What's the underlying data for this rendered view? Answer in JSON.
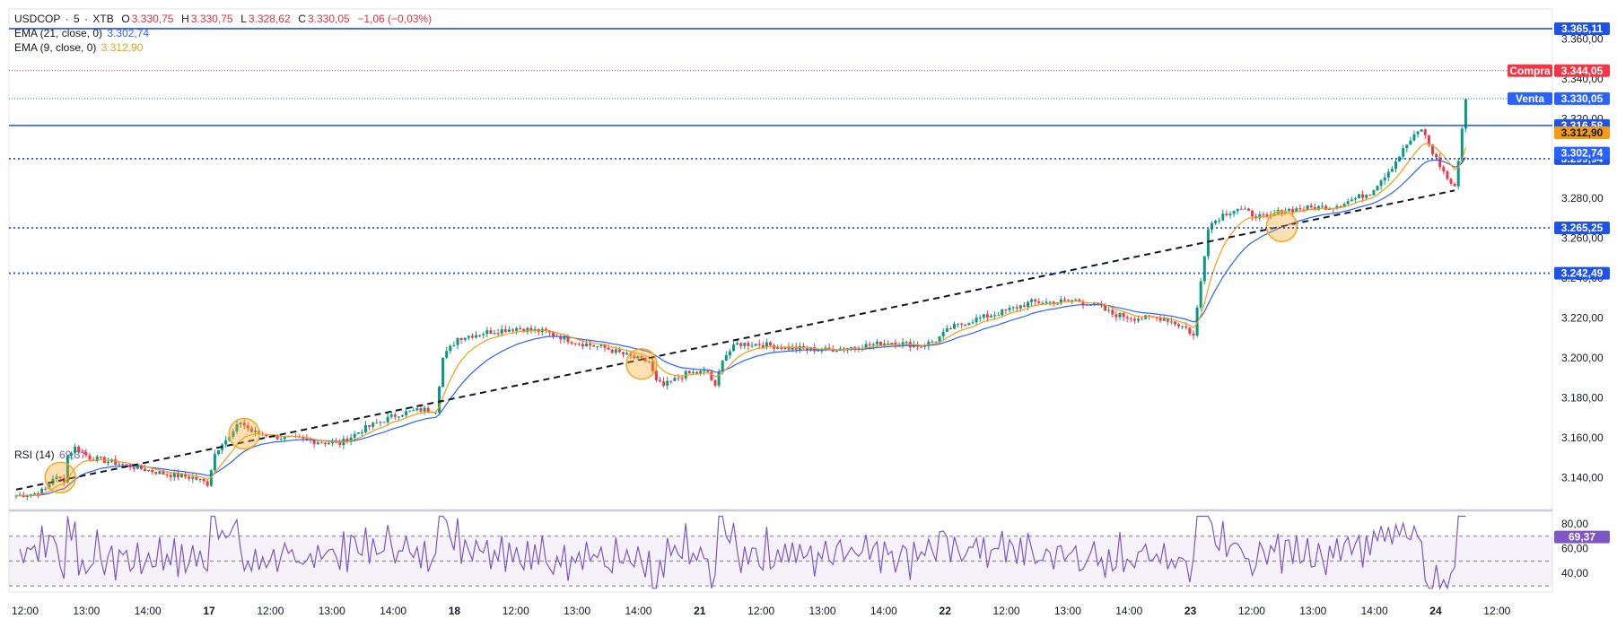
{
  "legend": {
    "symbol": "USDCOP",
    "separator": "·",
    "interval": "5",
    "exchange": "XTB",
    "open_label": "O",
    "open": "3.330,75",
    "high_label": "H",
    "high": "3.330,75",
    "low_label": "L",
    "low": "3.328,62",
    "close_label": "C",
    "close": "3.330,05",
    "change": "−1,06 (−0,03%)",
    "ema21_label": "EMA (21, close, 0)",
    "ema21_value": "3.302,74",
    "ema9_label": "EMA (9, close, 0)",
    "ema9_value": "3.312,90",
    "rsi_label": "RSI (14)",
    "rsi_value": "69,37"
  },
  "colors": {
    "up": "#089981",
    "down": "#f23645",
    "ema21": "#2962ff",
    "ema9": "#f39c12",
    "rsi": "#7e57c2",
    "level_line": "#1e53e5",
    "buy": "#f23645",
    "sell": "#2962ff",
    "circle": "#f5a623"
  },
  "chart_data": [
    {
      "type": "line",
      "name": "price",
      "y_range": [
        3124,
        3375
      ],
      "y_ticks": [
        3140,
        3160,
        3180,
        3200,
        3220,
        3240,
        3260,
        3280,
        3300,
        3320,
        3340,
        3360
      ],
      "y_tick_labels": [
        "3.140,00",
        "3.160,00",
        "3.180,00",
        "3.200,00",
        "3.220,00",
        "3.240,00",
        "3.260,00",
        "3.280,00",
        "3.300,00",
        "3.320,00",
        "3.340,00",
        "3.360,00"
      ],
      "x_labels": [
        "12:00",
        "13:00",
        "14:00",
        "17",
        "12:00",
        "13:00",
        "14:00",
        "18",
        "12:00",
        "13:00",
        "14:00",
        "21",
        "12:00",
        "13:00",
        "14:00",
        "22",
        "12:00",
        "13:00",
        "14:00",
        "23",
        "12:00",
        "13:00",
        "14:00",
        "24",
        "12:00"
      ],
      "x_bold": [
        "17",
        "18",
        "21",
        "22",
        "23",
        "24"
      ],
      "ohlc_keyframes": [
        [
          0,
          3131
        ],
        [
          5,
          3132
        ],
        [
          8,
          3134
        ],
        [
          10,
          3140
        ],
        [
          13,
          3139
        ],
        [
          14,
          3151
        ],
        [
          16,
          3155
        ],
        [
          20,
          3150
        ],
        [
          28,
          3147
        ],
        [
          40,
          3142
        ],
        [
          48,
          3140
        ],
        [
          52,
          3137
        ],
        [
          54,
          3152
        ],
        [
          56,
          3158
        ],
        [
          58,
          3160
        ],
        [
          61,
          3168
        ],
        [
          64,
          3163
        ],
        [
          72,
          3160
        ],
        [
          88,
          3157
        ],
        [
          94,
          3164
        ],
        [
          104,
          3172
        ],
        [
          110,
          3174
        ],
        [
          114,
          3174
        ],
        [
          116,
          3200
        ],
        [
          120,
          3210
        ],
        [
          128,
          3213
        ],
        [
          136,
          3215
        ],
        [
          144,
          3213
        ],
        [
          152,
          3208
        ],
        [
          160,
          3205
        ],
        [
          168,
          3200
        ],
        [
          172,
          3198
        ],
        [
          174,
          3188
        ],
        [
          176,
          3186
        ],
        [
          182,
          3192
        ],
        [
          188,
          3193
        ],
        [
          190,
          3185
        ],
        [
          192,
          3200
        ],
        [
          196,
          3207
        ],
        [
          202,
          3207
        ],
        [
          210,
          3205
        ],
        [
          220,
          3204
        ],
        [
          230,
          3206
        ],
        [
          238,
          3208
        ],
        [
          246,
          3206
        ],
        [
          250,
          3209
        ],
        [
          254,
          3215
        ],
        [
          260,
          3219
        ],
        [
          268,
          3223
        ],
        [
          276,
          3228
        ],
        [
          282,
          3228
        ],
        [
          288,
          3229
        ],
        [
          294,
          3226
        ],
        [
          298,
          3222
        ],
        [
          304,
          3220
        ],
        [
          312,
          3220
        ],
        [
          318,
          3215
        ],
        [
          320,
          3211
        ],
        [
          324,
          3266
        ],
        [
          328,
          3272
        ],
        [
          332,
          3275
        ],
        [
          336,
          3272
        ],
        [
          340,
          3270
        ],
        [
          344,
          3274
        ],
        [
          350,
          3275
        ],
        [
          358,
          3276
        ],
        [
          364,
          3280
        ],
        [
          368,
          3283
        ],
        [
          374,
          3296
        ],
        [
          378,
          3307
        ],
        [
          382,
          3315
        ],
        [
          385,
          3303
        ],
        [
          389,
          3290
        ],
        [
          391,
          3285
        ],
        [
          394,
          3330
        ]
      ],
      "ema9_label": "EMA (9, close, 0)",
      "ema21_label": "EMA (21, close, 0)",
      "trendline_points": [
        [
          0,
          3134
        ],
        [
          391,
          3284
        ]
      ],
      "highlight_circles": [
        [
          12,
          3140
        ],
        [
          62,
          3162
        ],
        [
          170,
          3197
        ],
        [
          344,
          3266
        ]
      ],
      "levels": [
        {
          "value": 3365.11,
          "label": "3.365,11",
          "style": "solid"
        },
        {
          "value": 3316.58,
          "label": "3.316,58",
          "style": "solid"
        },
        {
          "value": 3299.94,
          "label": "3.299,94",
          "style": "dotted"
        },
        {
          "value": 3265.25,
          "label": "3.265,25",
          "style": "dotted"
        },
        {
          "value": 3242.49,
          "label": "3.242,49",
          "style": "dotted"
        }
      ],
      "price_tags": [
        {
          "name": "Compra",
          "value": 3344.05,
          "label": "3.344,05",
          "kind": "buy"
        },
        {
          "name": "Venta",
          "value": 3330.05,
          "label": "3.330,05",
          "kind": "sell"
        },
        {
          "value": 3312.9,
          "label": "3.312,90",
          "kind": "ema9"
        },
        {
          "value": 3302.74,
          "label": "3.302,74",
          "kind": "ema21"
        }
      ]
    },
    {
      "type": "line",
      "name": "RSI (14)",
      "y_range": [
        25,
        90
      ],
      "y_ticks": [
        40,
        60,
        80
      ],
      "y_tick_labels": [
        "40,00",
        "60,00",
        "80,00"
      ],
      "bands": [
        70,
        50,
        30
      ],
      "current": 69.37,
      "current_label": "69,37"
    }
  ]
}
